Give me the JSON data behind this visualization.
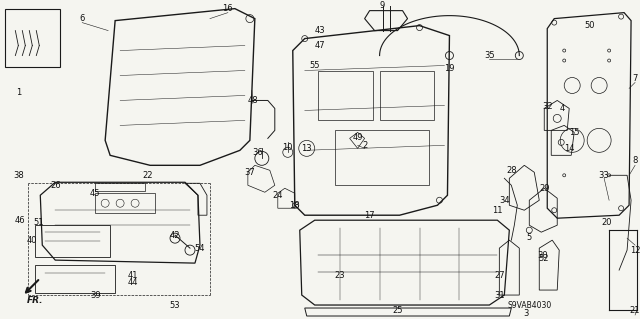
{
  "background_color": "#f5f5f0",
  "diagram_code": "S9VAB4030",
  "fig_width": 6.4,
  "fig_height": 3.19,
  "dpi": 100,
  "line_color": "#1a1a1a",
  "text_color": "#111111",
  "label_font_size": 6.0
}
